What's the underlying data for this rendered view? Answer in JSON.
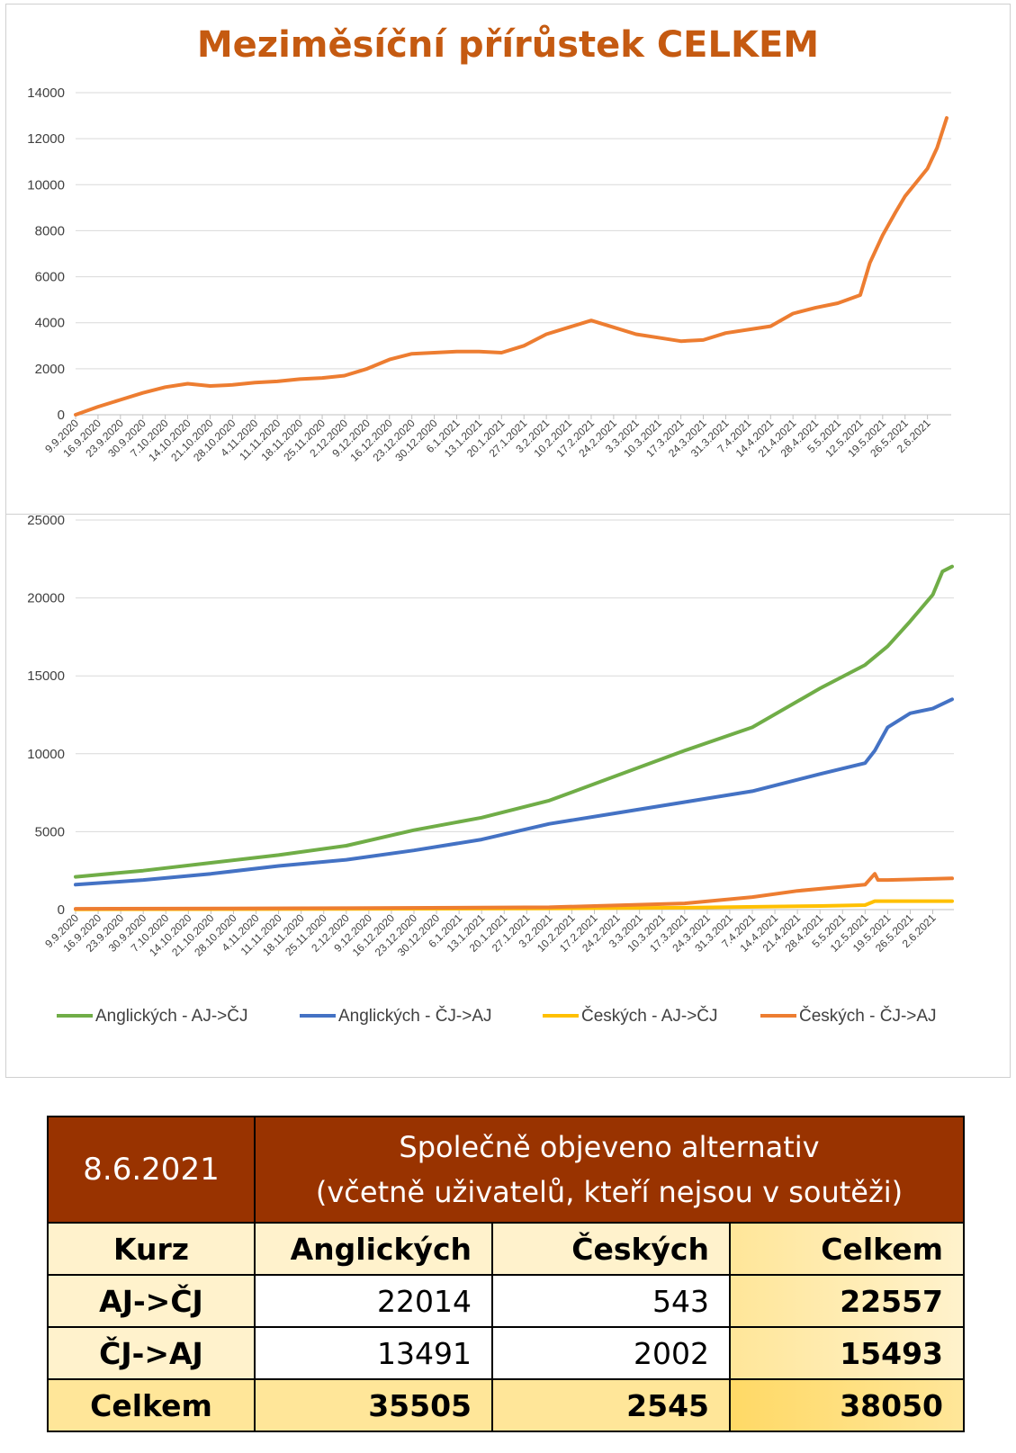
{
  "chart_data": [
    {
      "type": "line",
      "title": "Meziměsíční přírůstek CELKEM",
      "ylim": [
        0,
        14000
      ],
      "yticks": [
        "0",
        "2000",
        "4000",
        "6000",
        "8000",
        "10000",
        "12000",
        "14000"
      ],
      "grid": true,
      "x_tick_labels": [
        "9.9.2020",
        "16.9.2020",
        "23.9.2020",
        "30.9.2020",
        "7.10.2020",
        "14.10.2020",
        "21.10.2020",
        "28.10.2020",
        "4.11.2020",
        "11.11.2020",
        "18.11.2020",
        "25.11.2020",
        "2.12.2020",
        "9.12.2020",
        "16.12.2020",
        "23.12.2020",
        "30.12.2020",
        "6.1.2021",
        "13.1.2021",
        "20.1.2021",
        "27.1.2021",
        "3.2.2021",
        "10.2.2021",
        "17.2.2021",
        "24.2.2021",
        "3.3.2021",
        "10.3.2021",
        "17.3.2021",
        "24.3.2021",
        "31.3.2021",
        "7.4.2021",
        "14.4.2021",
        "21.4.2021",
        "28.4.2021",
        "5.5.2021",
        "12.5.2021",
        "19.5.2021",
        "26.5.2021",
        "2.6.2021"
      ],
      "series": [
        {
          "color": "#ED7D31",
          "x": [
            "9.9.2020",
            "16.9.2020",
            "23.9.2020",
            "30.9.2020",
            "7.10.2020",
            "14.10.2020",
            "21.10.2020",
            "28.10.2020",
            "4.11.2020",
            "11.11.2020",
            "18.11.2020",
            "25.11.2020",
            "2.12.2020",
            "9.12.2020",
            "16.12.2020",
            "23.12.2020",
            "30.12.2020",
            "6.1.2021",
            "13.1.2021",
            "20.1.2021",
            "27.1.2021",
            "3.2.2021",
            "10.2.2021",
            "17.2.2021",
            "24.2.2021",
            "3.3.2021",
            "10.3.2021",
            "17.3.2021",
            "24.3.2021",
            "31.3.2021",
            "7.4.2021",
            "14.4.2021",
            "21.4.2021",
            "28.4.2021",
            "5.5.2021",
            "12.5.2021",
            "15.5.2021",
            "19.5.2021",
            "23.5.2021",
            "26.5.2021",
            "2.6.2021",
            "5.6.2021",
            "8.6.2021"
          ],
          "values": [
            0,
            350,
            650,
            950,
            1200,
            1350,
            1250,
            1300,
            1400,
            1450,
            1550,
            1600,
            1700,
            2000,
            2400,
            2650,
            2700,
            2750,
            2750,
            2700,
            3000,
            3500,
            3800,
            4100,
            3800,
            3500,
            3350,
            3200,
            3250,
            3550,
            3700,
            3850,
            4400,
            4650,
            4850,
            5200,
            6600,
            7800,
            8800,
            9500,
            10700,
            11600,
            12900
          ]
        }
      ]
    },
    {
      "type": "line",
      "ylim": [
        0,
        25000
      ],
      "yticks": [
        "0",
        "5000",
        "10000",
        "15000",
        "20000",
        "25000"
      ],
      "grid": true,
      "legend": "bottom",
      "x_tick_labels": [
        "9.9.2020",
        "16.9.2020",
        "23.9.2020",
        "30.9.2020",
        "7.10.2020",
        "14.10.2020",
        "21.10.2020",
        "28.10.2020",
        "4.11.2020",
        "11.11.2020",
        "18.11.2020",
        "25.11.2020",
        "2.12.2020",
        "9.12.2020",
        "16.12.2020",
        "23.12.2020",
        "30.12.2020",
        "6.1.2021",
        "13.1.2021",
        "20.1.2021",
        "27.1.2021",
        "3.2.2021",
        "10.2.2021",
        "17.2.2021",
        "24.2.2021",
        "3.3.2021",
        "10.3.2021",
        "17.3.2021",
        "24.3.2021",
        "31.3.2021",
        "7.4.2021",
        "14.4.2021",
        "21.4.2021",
        "28.4.2021",
        "5.5.2021",
        "12.5.2021",
        "19.5.2021",
        "26.5.2021",
        "2.6.2021"
      ],
      "series": [
        {
          "name": "Anglických - AJ->ČJ",
          "color": "#70AD47",
          "x": [
            "9.9.2020",
            "30.9.2020",
            "21.10.2020",
            "11.11.2020",
            "2.12.2020",
            "23.12.2020",
            "13.1.2021",
            "3.2.2021",
            "24.2.2021",
            "17.3.2021",
            "7.4.2021",
            "28.4.2021",
            "12.5.2021",
            "19.5.2021",
            "26.5.2021",
            "2.6.2021",
            "5.6.2021",
            "8.6.2021"
          ],
          "values": [
            2100,
            2500,
            3000,
            3500,
            4100,
            5100,
            5900,
            7000,
            8600,
            10200,
            11700,
            14200,
            15700,
            16900,
            18500,
            20200,
            21700,
            22014
          ]
        },
        {
          "name": "Anglických - ČJ->AJ",
          "color": "#4472C4",
          "x": [
            "9.9.2020",
            "30.9.2020",
            "21.10.2020",
            "11.11.2020",
            "2.12.2020",
            "23.12.2020",
            "13.1.2021",
            "3.2.2021",
            "24.2.2021",
            "17.3.2021",
            "7.4.2021",
            "28.4.2021",
            "12.5.2021",
            "15.5.2021",
            "19.5.2021",
            "26.5.2021",
            "2.6.2021",
            "8.6.2021"
          ],
          "values": [
            1600,
            1900,
            2300,
            2800,
            3200,
            3800,
            4500,
            5500,
            6200,
            6900,
            7600,
            8700,
            9400,
            10200,
            11700,
            12600,
            12900,
            13491
          ]
        },
        {
          "name": "Českých - AJ->ČJ",
          "color": "#FFC000",
          "x": [
            "9.9.2020",
            "2.12.2020",
            "3.2.2021",
            "17.3.2021",
            "28.4.2021",
            "12.5.2021",
            "15.5.2021",
            "8.6.2021"
          ],
          "values": [
            20,
            40,
            70,
            120,
            230,
            290,
            540,
            543
          ]
        },
        {
          "name": "Českých - ČJ->AJ",
          "color": "#ED7D31",
          "x": [
            "9.9.2020",
            "2.12.2020",
            "3.2.2021",
            "17.3.2021",
            "7.4.2021",
            "21.4.2021",
            "12.5.2021",
            "15.5.2021",
            "16.5.2021",
            "19.5.2021",
            "8.6.2021"
          ],
          "values": [
            50,
            90,
            150,
            400,
            800,
            1200,
            1600,
            2300,
            1900,
            1900,
            2002
          ]
        }
      ]
    }
  ],
  "table": {
    "date": "8.6.2021",
    "title_line1": "Společně objeveno alternativ",
    "title_line2": "(včetně uživatelů, kteří nejsou v soutěži)",
    "headers": [
      "Kurz",
      "Anglických",
      "Českých",
      "Celkem"
    ],
    "rows": [
      [
        "AJ->ČJ",
        "22014",
        "543",
        "22557"
      ],
      [
        "ČJ->AJ",
        "13491",
        "2002",
        "15493"
      ],
      [
        "Celkem",
        "35505",
        "2545",
        "38050"
      ]
    ]
  }
}
